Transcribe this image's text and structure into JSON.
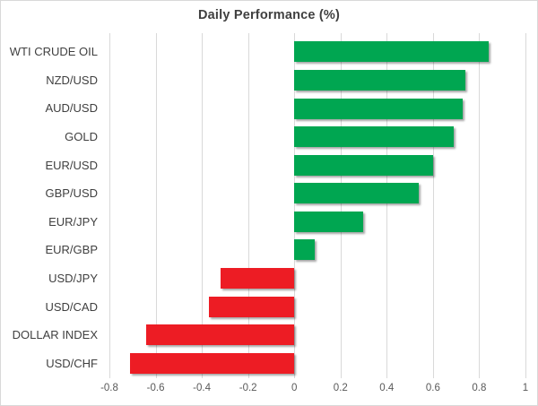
{
  "chart_data": {
    "type": "bar",
    "orientation": "horizontal",
    "title": "Daily Performance (%)",
    "categories": [
      "WTI CRUDE OIL",
      "NZD/USD",
      "AUD/USD",
      "GOLD",
      "EUR/USD",
      "GBP/USD",
      "EUR/JPY",
      "EUR/GBP",
      "USD/JPY",
      "USD/CAD",
      "DOLLAR INDEX",
      "USD/CHF"
    ],
    "values": [
      0.84,
      0.74,
      0.73,
      0.69,
      0.6,
      0.54,
      0.3,
      0.09,
      -0.32,
      -0.37,
      -0.64,
      -0.71
    ],
    "xlim": [
      -0.8,
      1.0
    ],
    "xticks": [
      -0.8,
      -0.6,
      -0.4,
      -0.2,
      0,
      0.2,
      0.4,
      0.6,
      0.8,
      1
    ],
    "xtick_labels": [
      "-0.8",
      "-0.6",
      "-0.4",
      "-0.2",
      "0",
      "0.2",
      "0.4",
      "0.6",
      "0.8",
      "1"
    ],
    "grid": "vertical-gridlines-on",
    "legend": "none",
    "colors": {
      "positive": "#00A651",
      "negative": "#ED1C24",
      "gridline": "#D9D9D9",
      "title_text": "#404040",
      "category_text": "#404040",
      "tick_text": "#595959"
    }
  }
}
